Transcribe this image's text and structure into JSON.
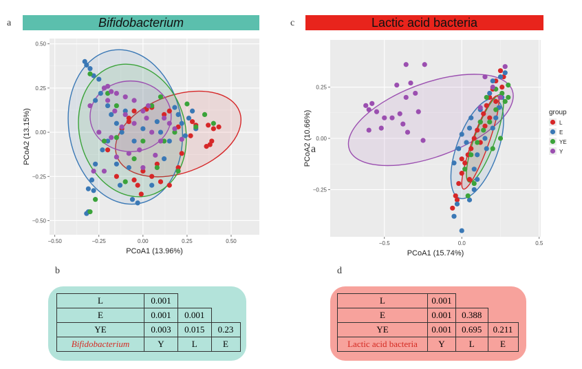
{
  "panel_labels": {
    "a": "a",
    "b": "b",
    "c": "c",
    "d": "d",
    "stray": "a"
  },
  "chart_data": [
    {
      "type": "scatter",
      "title": "Bifidobacterium",
      "xlabel": "PCoA1 (13.96%)",
      "ylabel": "PCoA2 (13.15%)",
      "xlim": [
        -0.53,
        0.66
      ],
      "ylim": [
        -0.58,
        0.53
      ],
      "xticks": [
        -0.5,
        -0.25,
        0,
        0.25,
        0.5
      ],
      "xtick_labels": [
        "−0.50",
        "−0.25",
        "0.00",
        "0.25",
        "0.50"
      ],
      "yticks": [
        0.5,
        0.25,
        0,
        -0.25,
        -0.5
      ],
      "ytick_labels": [
        "0.50",
        "0.25",
        "0.00",
        "−0.25",
        "−0.50"
      ],
      "grid": true,
      "colors": {
        "L": "#d62728",
        "E": "#3a78b5",
        "YE": "#3ba33a",
        "Y": "#9b4fb0"
      },
      "ellipses": [
        {
          "group": "L",
          "cx": 0.2,
          "cy": -0.01,
          "rx": 0.37,
          "ry": 0.22,
          "angle": -20
        },
        {
          "group": "E",
          "cx": -0.1,
          "cy": 0.03,
          "rx": 0.32,
          "ry": 0.44,
          "angle": -10
        },
        {
          "group": "YE",
          "cx": -0.06,
          "cy": 0.01,
          "rx": 0.3,
          "ry": 0.38,
          "angle": -15
        },
        {
          "group": "Y",
          "cx": -0.07,
          "cy": 0.09,
          "rx": 0.23,
          "ry": 0.2,
          "angle": 0
        }
      ],
      "series": [
        {
          "name": "L",
          "points": [
            [
              0.43,
              0.03
            ],
            [
              0.4,
              0.02
            ],
            [
              0.37,
              0.04
            ],
            [
              0.39,
              -0.05
            ],
            [
              0.38,
              -0.07
            ],
            [
              0.36,
              -0.08
            ],
            [
              0.3,
              0.04
            ],
            [
              0.28,
              0.06
            ],
            [
              0.2,
              0.03
            ],
            [
              0.12,
              0.1
            ],
            [
              -0.05,
              0.12
            ],
            [
              -0.08,
              0.06
            ],
            [
              -0.12,
              0.02
            ],
            [
              0.02,
              0.13
            ],
            [
              0.05,
              0.14
            ],
            [
              0.1,
              -0.28
            ],
            [
              0.15,
              -0.3
            ],
            [
              0.05,
              -0.25
            ],
            [
              -0.01,
              -0.35
            ],
            [
              -0.03,
              -0.3
            ],
            [
              -0.05,
              -0.27
            ],
            [
              0.0,
              -0.22
            ],
            [
              0.08,
              -0.18
            ],
            [
              -0.15,
              -0.25
            ],
            [
              0.2,
              -0.2
            ],
            [
              0.22,
              -0.12
            ],
            [
              -0.08,
              0.08
            ],
            [
              0.15,
              0.12
            ],
            [
              -0.2,
              -0.1
            ],
            [
              0.27,
              -0.02
            ]
          ]
        },
        {
          "name": "E",
          "points": [
            [
              -0.33,
              0.4
            ],
            [
              -0.32,
              0.38
            ],
            [
              -0.3,
              0.36
            ],
            [
              -0.28,
              0.32
            ],
            [
              -0.25,
              0.3
            ],
            [
              -0.22,
              0.25
            ],
            [
              -0.27,
              0.18
            ],
            [
              -0.24,
              0.22
            ],
            [
              -0.2,
              0.15
            ],
            [
              -0.18,
              0.1
            ],
            [
              -0.15,
              0.05
            ],
            [
              -0.12,
              0.0
            ],
            [
              -0.31,
              -0.32
            ],
            [
              -0.32,
              -0.46
            ],
            [
              -0.31,
              -0.45
            ],
            [
              -0.28,
              -0.33
            ],
            [
              -0.29,
              -0.27
            ],
            [
              -0.27,
              -0.18
            ],
            [
              -0.23,
              -0.1
            ],
            [
              -0.2,
              -0.05
            ],
            [
              -0.13,
              -0.3
            ],
            [
              -0.03,
              -0.4
            ],
            [
              -0.06,
              -0.38
            ],
            [
              0.05,
              -0.3
            ],
            [
              0.12,
              -0.15
            ],
            [
              0.15,
              -0.05
            ],
            [
              0.22,
              0.05
            ],
            [
              0.26,
              0.08
            ],
            [
              0.3,
              0.02
            ],
            [
              0.2,
              0.1
            ],
            [
              -0.08,
              -0.2
            ],
            [
              -0.1,
              0.12
            ],
            [
              0.0,
              0.02
            ],
            [
              0.08,
              0.06
            ],
            [
              0.24,
              -0.02
            ],
            [
              -0.05,
              -0.05
            ],
            [
              0.18,
              0.14
            ],
            [
              0.1,
              0.0
            ],
            [
              -0.15,
              -0.18
            ],
            [
              0.28,
              0.12
            ]
          ]
        },
        {
          "name": "YE",
          "points": [
            [
              -0.3,
              0.33
            ],
            [
              -0.2,
              0.22
            ],
            [
              -0.15,
              0.15
            ],
            [
              -0.27,
              -0.38
            ],
            [
              -0.3,
              -0.45
            ],
            [
              -0.1,
              -0.28
            ],
            [
              0.0,
              -0.05
            ],
            [
              0.05,
              0.15
            ],
            [
              0.25,
              0.16
            ],
            [
              0.3,
              0.03
            ],
            [
              0.35,
              0.1
            ],
            [
              0.4,
              0.05
            ],
            [
              0.2,
              -0.22
            ],
            [
              -0.15,
              -0.03
            ],
            [
              -0.05,
              -0.15
            ],
            [
              0.12,
              -0.05
            ],
            [
              0.18,
              0.0
            ],
            [
              0.08,
              -0.2
            ],
            [
              0.1,
              0.2
            ],
            [
              -0.22,
              -0.05
            ]
          ]
        },
        {
          "name": "Y",
          "points": [
            [
              -0.2,
              0.26
            ],
            [
              -0.18,
              0.23
            ],
            [
              -0.22,
              0.25
            ],
            [
              -0.15,
              0.22
            ],
            [
              -0.1,
              0.2
            ],
            [
              -0.05,
              0.18
            ],
            [
              -0.2,
              0.18
            ],
            [
              -0.16,
              0.12
            ],
            [
              -0.1,
              0.1
            ],
            [
              -0.05,
              0.05
            ],
            [
              0.0,
              0.12
            ],
            [
              0.02,
              0.08
            ],
            [
              0.05,
              0.0
            ],
            [
              0.1,
              -0.05
            ],
            [
              0.15,
              0.05
            ],
            [
              -0.25,
              0.0
            ],
            [
              -0.28,
              -0.22
            ],
            [
              -0.22,
              -0.22
            ],
            [
              -0.15,
              -0.14
            ],
            [
              -0.08,
              -0.12
            ],
            [
              0.0,
              -0.2
            ],
            [
              -0.02,
              -0.1
            ],
            [
              0.07,
              -0.13
            ],
            [
              0.12,
              0.08
            ],
            [
              0.18,
              0.02
            ],
            [
              -0.12,
              0.03
            ],
            [
              0.22,
              -0.04
            ],
            [
              -0.3,
              0.15
            ],
            [
              0.03,
              0.15
            ],
            [
              -0.18,
              -0.03
            ]
          ]
        }
      ]
    },
    {
      "type": "scatter",
      "title": "Lactic acid bacteria",
      "xlabel": "PCoA1 (15.74%)",
      "ylabel": "PCoA2 (10.66%)",
      "xlim": [
        -0.85,
        0.51
      ],
      "ylim": [
        -0.48,
        0.48
      ],
      "xticks": [
        -0.5,
        0,
        0.5
      ],
      "xtick_labels": [
        "−0.5",
        "0.0",
        "0.5"
      ],
      "yticks": [
        0.25,
        0,
        -0.25
      ],
      "ytick_labels": [
        "0.25",
        "0.00",
        "−0.25"
      ],
      "grid": true,
      "legend": {
        "title": "group",
        "position": "right",
        "entries": [
          "L",
          "E",
          "YE",
          "Y"
        ]
      },
      "colors": {
        "L": "#d62728",
        "E": "#3a78b5",
        "YE": "#3ba33a",
        "Y": "#9b4fb0"
      },
      "ellipses": [
        {
          "group": "Y",
          "cx": -0.2,
          "cy": 0.09,
          "rx": 0.56,
          "ry": 0.18,
          "angle": -20
        },
        {
          "group": "E",
          "cx": 0.1,
          "cy": -0.05,
          "rx": 0.34,
          "ry": 0.1,
          "angle": -70
        },
        {
          "group": "YE",
          "cx": 0.15,
          "cy": 0.0,
          "rx": 0.3,
          "ry": 0.05,
          "angle": -70
        },
        {
          "group": "L",
          "cx": 0.12,
          "cy": -0.02,
          "rx": 0.32,
          "ry": 0.04,
          "angle": -70
        }
      ],
      "series": [
        {
          "name": "L",
          "points": [
            [
              -0.06,
              -0.34
            ],
            [
              -0.04,
              -0.28
            ],
            [
              -0.02,
              -0.22
            ],
            [
              0.0,
              -0.17
            ],
            [
              0.02,
              -0.12
            ],
            [
              0.04,
              -0.08
            ],
            [
              0.06,
              -0.05
            ],
            [
              0.08,
              0.0
            ],
            [
              0.1,
              0.04
            ],
            [
              0.12,
              0.08
            ],
            [
              0.14,
              0.12
            ],
            [
              0.16,
              0.16
            ],
            [
              0.18,
              0.2
            ],
            [
              0.2,
              0.24
            ],
            [
              0.22,
              0.28
            ],
            [
              0.25,
              0.33
            ],
            [
              0.27,
              0.3
            ],
            [
              0.0,
              -0.1
            ],
            [
              0.05,
              -0.2
            ],
            [
              0.12,
              -0.02
            ],
            [
              0.18,
              0.1
            ],
            [
              0.22,
              0.18
            ],
            [
              -0.03,
              -0.3
            ],
            [
              0.15,
              0.06
            ],
            [
              0.26,
              0.25
            ]
          ]
        },
        {
          "name": "E",
          "points": [
            [
              0.0,
              -0.45
            ],
            [
              -0.05,
              -0.38
            ],
            [
              -0.03,
              -0.32
            ],
            [
              0.05,
              -0.3
            ],
            [
              0.08,
              -0.25
            ],
            [
              0.1,
              -0.2
            ],
            [
              -0.05,
              -0.12
            ],
            [
              -0.02,
              -0.05
            ],
            [
              0.03,
              -0.02
            ],
            [
              0.1,
              -0.08
            ],
            [
              0.15,
              0.0
            ],
            [
              0.2,
              0.05
            ],
            [
              0.22,
              0.1
            ],
            [
              0.24,
              0.15
            ],
            [
              0.26,
              0.2
            ],
            [
              0.18,
              0.22
            ],
            [
              0.2,
              0.28
            ],
            [
              0.06,
              0.1
            ],
            [
              0.12,
              0.14
            ],
            [
              0.0,
              0.02
            ],
            [
              0.08,
              -0.15
            ],
            [
              0.25,
              0.3
            ],
            [
              0.28,
              0.32
            ],
            [
              0.16,
              -0.05
            ],
            [
              0.05,
              0.05
            ]
          ]
        },
        {
          "name": "YE",
          "points": [
            [
              0.02,
              -0.15
            ],
            [
              0.06,
              -0.08
            ],
            [
              0.1,
              -0.02
            ],
            [
              0.14,
              0.04
            ],
            [
              0.18,
              0.08
            ],
            [
              0.22,
              0.14
            ],
            [
              0.26,
              0.22
            ],
            [
              0.3,
              0.26
            ],
            [
              0.28,
              0.18
            ],
            [
              0.08,
              -0.22
            ],
            [
              0.2,
              -0.05
            ],
            [
              0.25,
              0.0
            ],
            [
              0.12,
              0.08
            ],
            [
              0.16,
              0.2
            ],
            [
              0.3,
              0.2
            ],
            [
              0.04,
              -0.28
            ],
            [
              0.22,
              0.24
            ]
          ]
        },
        {
          "name": "Y",
          "points": [
            [
              -0.62,
              0.16
            ],
            [
              -0.6,
              0.14
            ],
            [
              -0.58,
              0.17
            ],
            [
              -0.55,
              0.13
            ],
            [
              -0.5,
              0.1
            ],
            [
              -0.45,
              0.1
            ],
            [
              -0.52,
              0.05
            ],
            [
              -0.6,
              0.04
            ],
            [
              -0.4,
              0.12
            ],
            [
              -0.38,
              0.07
            ],
            [
              -0.35,
              0.03
            ],
            [
              -0.36,
              0.2
            ],
            [
              -0.33,
              0.27
            ],
            [
              -0.3,
              0.22
            ],
            [
              -0.42,
              0.26
            ],
            [
              -0.36,
              0.36
            ],
            [
              -0.24,
              0.36
            ],
            [
              -0.28,
              0.13
            ],
            [
              -0.25,
              -0.01
            ],
            [
              0.15,
              0.3
            ],
            [
              0.2,
              0.25
            ],
            [
              0.28,
              0.35
            ],
            [
              0.25,
              0.2
            ],
            [
              0.12,
              0.15
            ]
          ]
        }
      ]
    }
  ],
  "tables": [
    {
      "name_label": "Bifidobacterium",
      "row_labels": [
        "L",
        "E",
        "YE"
      ],
      "col_labels": [
        "Y",
        "L",
        "E"
      ],
      "rows": [
        [
          "0.001"
        ],
        [
          "0.001",
          "0.001"
        ],
        [
          "0.003",
          "0.015",
          "0.23"
        ]
      ]
    },
    {
      "name_label": "Lactic acid bacteria",
      "row_labels": [
        "L",
        "E",
        "YE"
      ],
      "col_labels": [
        "Y",
        "L",
        "E"
      ],
      "rows": [
        [
          "0.001"
        ],
        [
          "0.001",
          "0.388"
        ],
        [
          "0.001",
          "0.695",
          "0.211"
        ]
      ]
    }
  ]
}
